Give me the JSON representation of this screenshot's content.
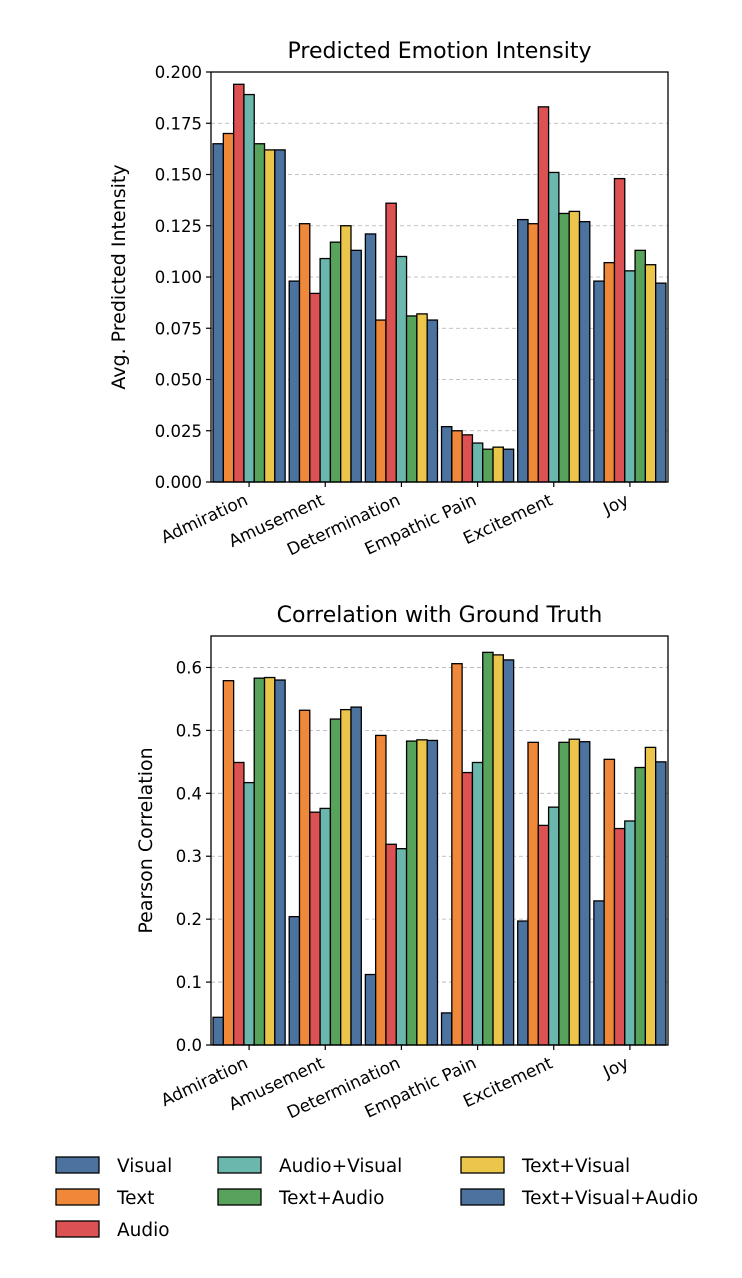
{
  "chart_data": [
    {
      "type": "bar",
      "title": "Predicted Emotion Intensity",
      "ylabel": "Avg. Predicted Intensity",
      "xlabel": "",
      "ylim": [
        0,
        0.2
      ],
      "yticks": [
        "0.000",
        "0.025",
        "0.050",
        "0.075",
        "0.100",
        "0.125",
        "0.150",
        "0.175",
        "0.200"
      ],
      "grid": "y-dashed",
      "categories": [
        "Admiration",
        "Amusement",
        "Determination",
        "Empathic Pain",
        "Excitement",
        "Joy"
      ],
      "series": [
        {
          "name": "Visual",
          "values": [
            0.165,
            0.098,
            0.121,
            0.027,
            0.128,
            0.098
          ]
        },
        {
          "name": "Text",
          "values": [
            0.17,
            0.126,
            0.079,
            0.025,
            0.126,
            0.107
          ]
        },
        {
          "name": "Audio",
          "values": [
            0.194,
            0.092,
            0.136,
            0.023,
            0.183,
            0.148
          ]
        },
        {
          "name": "Audio+Visual",
          "values": [
            0.189,
            0.109,
            0.11,
            0.019,
            0.151,
            0.103
          ]
        },
        {
          "name": "Text+Audio",
          "values": [
            0.165,
            0.117,
            0.081,
            0.016,
            0.131,
            0.113
          ]
        },
        {
          "name": "Text+Visual",
          "values": [
            0.162,
            0.125,
            0.082,
            0.017,
            0.132,
            0.106
          ]
        },
        {
          "name": "Text+Visual+Audio",
          "values": [
            0.162,
            0.113,
            0.079,
            0.016,
            0.127,
            0.097
          ]
        }
      ]
    },
    {
      "type": "bar",
      "title": "Correlation with Ground Truth",
      "ylabel": "Pearson Correlation",
      "xlabel": "",
      "ylim": [
        0,
        0.65
      ],
      "yticks": [
        "0.0",
        "0.1",
        "0.2",
        "0.3",
        "0.4",
        "0.5",
        "0.6"
      ],
      "grid": "y-dashed",
      "categories": [
        "Admiration",
        "Amusement",
        "Determination",
        "Empathic Pain",
        "Excitement",
        "Joy"
      ],
      "series": [
        {
          "name": "Visual",
          "values": [
            0.044,
            0.204,
            0.112,
            0.051,
            0.197,
            0.229
          ]
        },
        {
          "name": "Text",
          "values": [
            0.579,
            0.532,
            0.492,
            0.606,
            0.481,
            0.454
          ]
        },
        {
          "name": "Audio",
          "values": [
            0.449,
            0.37,
            0.319,
            0.433,
            0.349,
            0.344
          ]
        },
        {
          "name": "Audio+Visual",
          "values": [
            0.417,
            0.376,
            0.312,
            0.449,
            0.378,
            0.356
          ]
        },
        {
          "name": "Text+Audio",
          "values": [
            0.583,
            0.518,
            0.483,
            0.624,
            0.481,
            0.441
          ]
        },
        {
          "name": "Text+Visual",
          "values": [
            0.584,
            0.533,
            0.485,
            0.62,
            0.486,
            0.473
          ]
        },
        {
          "name": "Text+Visual+Audio",
          "values": [
            0.58,
            0.537,
            0.484,
            0.612,
            0.482,
            0.45
          ]
        }
      ]
    }
  ],
  "legend": {
    "placement": "bottom",
    "items": [
      "Visual",
      "Text",
      "Audio",
      "Audio+Visual",
      "Text+Audio",
      "Text+Visual",
      "Text+Visual+Audio"
    ]
  },
  "colors": [
    "#4c72a0",
    "#f0883a",
    "#dc5252",
    "#6bb6ad",
    "#57a35b",
    "#ecc64b",
    "#4c72a0"
  ]
}
